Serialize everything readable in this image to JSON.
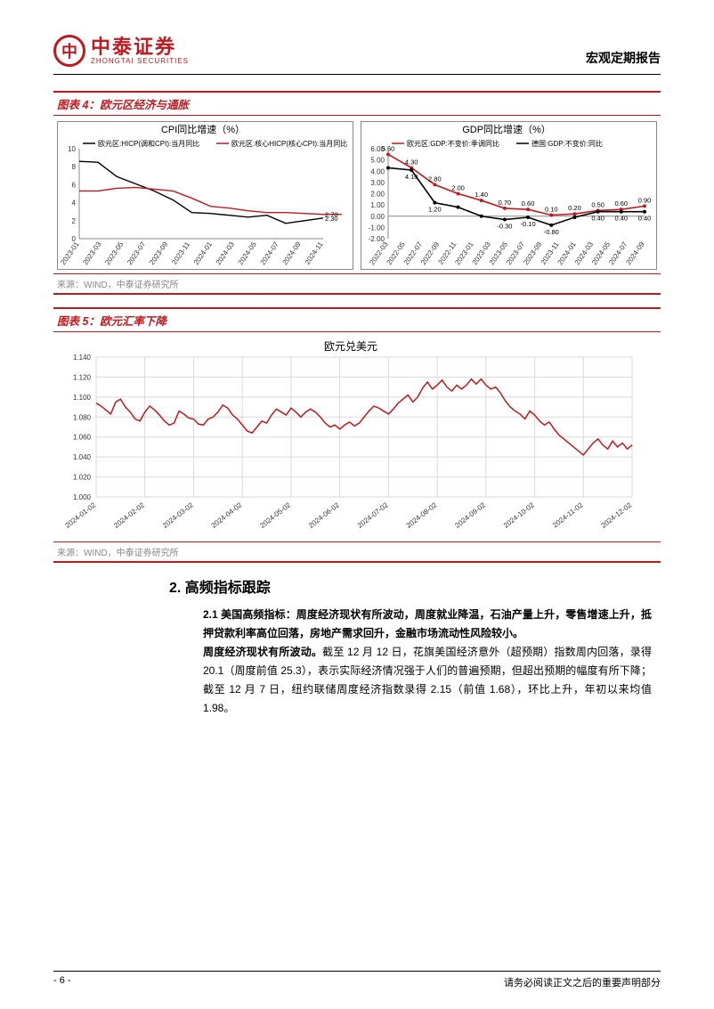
{
  "header": {
    "logo_cn": "中泰证券",
    "logo_en": "ZHONGTAI SECURITIES",
    "report_type": "宏观定期报告"
  },
  "chart4": {
    "title_idx": "图表 4：",
    "title_txt": "欧元区经济与通胀",
    "source": "来源：WIND，中泰证券研究所",
    "left": {
      "type": "line",
      "title": "CPI同比增速（%）",
      "legend": [
        {
          "label": "欧元区:HICP(调和CPI):当月同比",
          "color": "#000000"
        },
        {
          "label": "欧元区:核心HICP(核心CPI):当月同比",
          "color": "#c01920"
        }
      ],
      "x_categories": [
        "2023-01",
        "2023-03",
        "2023-05",
        "2023-07",
        "2023-09",
        "2023-11",
        "2024-01",
        "2024-03",
        "2024-05",
        "2024-07",
        "2024-09",
        "2024-11"
      ],
      "ylim": [
        0,
        10
      ],
      "ytick_step": 2,
      "series": [
        {
          "color": "#000000",
          "width": 1.4,
          "values": [
            8.6,
            8.5,
            6.9,
            6.1,
            5.3,
            4.3,
            2.9,
            2.8,
            2.6,
            2.4,
            2.6,
            1.7,
            2.0,
            2.3
          ]
        },
        {
          "color": "#c01920",
          "width": 1.4,
          "values": [
            5.3,
            5.3,
            5.6,
            5.7,
            5.5,
            5.3,
            4.5,
            3.6,
            3.4,
            3.1,
            2.9,
            2.9,
            2.8,
            2.7,
            2.7
          ]
        }
      ],
      "end_labels": [
        {
          "text": "2.70",
          "y": 2.7,
          "color": "#000"
        },
        {
          "text": "2.30",
          "y": 2.3,
          "color": "#000"
        }
      ],
      "background_color": "#ffffff",
      "grid_color": "#d0d0d0"
    },
    "right": {
      "type": "line",
      "title": "GDP同比增速（%）",
      "legend": [
        {
          "label": "欧元区:GDP:不变价:季调同比",
          "color": "#c01920"
        },
        {
          "label": "德国:GDP:不变价:同比",
          "color": "#000000"
        }
      ],
      "x_categories": [
        "2022-03",
        "2022-05",
        "2022-07",
        "2022-09",
        "2022-11",
        "2023-01",
        "2023-03",
        "2023-05",
        "2023-07",
        "2023-09",
        "2023-11",
        "2024-01",
        "2024-03",
        "2024-05",
        "2024-07",
        "2024-09"
      ],
      "ylim": [
        -2,
        6
      ],
      "ytick_step": 1,
      "series": [
        {
          "color": "#c01920",
          "width": 1.6,
          "labeled": true,
          "points": [
            {
              "x": 0,
              "y": 5.5,
              "label": "5.50"
            },
            {
              "x": 1,
              "y": 4.3,
              "label": "4.30"
            },
            {
              "x": 2,
              "y": 2.8,
              "label": "2.80"
            },
            {
              "x": 3,
              "y": 2.0,
              "label": "2.00"
            },
            {
              "x": 4,
              "y": 1.4,
              "label": "1.40"
            },
            {
              "x": 5,
              "y": 0.7,
              "label": "0.70"
            },
            {
              "x": 6,
              "y": 0.6,
              "label": "0.60"
            },
            {
              "x": 7,
              "y": 0.1,
              "label": "0.10"
            },
            {
              "x": 8,
              "y": 0.2,
              "label": "0.20"
            },
            {
              "x": 9,
              "y": 0.5,
              "label": "0.50"
            },
            {
              "x": 10,
              "y": 0.6,
              "label": "0.60"
            },
            {
              "x": 11,
              "y": 0.9,
              "label": "0.90"
            }
          ]
        },
        {
          "color": "#000000",
          "width": 1.6,
          "labeled": true,
          "points": [
            {
              "x": 0,
              "y": 4.3,
              "label": ""
            },
            {
              "x": 1,
              "y": 4.1,
              "label": "4.10"
            },
            {
              "x": 2,
              "y": 1.2,
              "label": "1.20"
            },
            {
              "x": 3,
              "y": 0.8,
              "label": ""
            },
            {
              "x": 4,
              "y": 0.0,
              "label": ""
            },
            {
              "x": 5,
              "y": -0.3,
              "label": "-0.30"
            },
            {
              "x": 6,
              "y": -0.1,
              "label": "-0.10"
            },
            {
              "x": 7,
              "y": -0.8,
              "label": "-0.80"
            },
            {
              "x": 8,
              "y": -0.1,
              "label": ""
            },
            {
              "x": 9,
              "y": 0.4,
              "label": "0.40"
            },
            {
              "x": 10,
              "y": 0.4,
              "label": "0.40"
            },
            {
              "x": 11,
              "y": 0.4,
              "label": "0.40"
            }
          ]
        }
      ],
      "background_color": "#ffffff",
      "grid_color": "#d0d0d0"
    }
  },
  "chart5": {
    "title_idx": "图表 5：",
    "title_txt": "欧元汇率下降",
    "source": "来源：WIND，中泰证券研究所",
    "panel": {
      "type": "line",
      "title": "欧元兑美元",
      "x_categories": [
        "2024-01-02",
        "2024-02-02",
        "2024-03-02",
        "2024-04-02",
        "2024-05-02",
        "2024-06-02",
        "2024-07-02",
        "2024-08-02",
        "2024-09-02",
        "2024-10-02",
        "2024-11-02",
        "2024-12-02"
      ],
      "ylim": [
        1.0,
        1.14
      ],
      "ytick_step": 0.02,
      "series_color": "#c01920",
      "series_width": 1.5,
      "values": [
        1.094,
        1.091,
        1.087,
        1.083,
        1.095,
        1.098,
        1.09,
        1.085,
        1.078,
        1.076,
        1.085,
        1.091,
        1.087,
        1.082,
        1.076,
        1.072,
        1.074,
        1.086,
        1.083,
        1.079,
        1.078,
        1.073,
        1.072,
        1.078,
        1.08,
        1.085,
        1.092,
        1.089,
        1.082,
        1.078,
        1.072,
        1.066,
        1.064,
        1.07,
        1.076,
        1.074,
        1.082,
        1.088,
        1.085,
        1.082,
        1.089,
        1.085,
        1.08,
        1.085,
        1.088,
        1.085,
        1.08,
        1.074,
        1.07,
        1.072,
        1.068,
        1.072,
        1.075,
        1.071,
        1.074,
        1.08,
        1.086,
        1.091,
        1.089,
        1.086,
        1.083,
        1.088,
        1.094,
        1.098,
        1.102,
        1.095,
        1.1,
        1.109,
        1.115,
        1.108,
        1.112,
        1.117,
        1.11,
        1.106,
        1.112,
        1.108,
        1.112,
        1.118,
        1.113,
        1.118,
        1.112,
        1.108,
        1.11,
        1.104,
        1.096,
        1.09,
        1.086,
        1.083,
        1.078,
        1.086,
        1.082,
        1.076,
        1.072,
        1.075,
        1.068,
        1.062,
        1.058,
        1.054,
        1.05,
        1.046,
        1.042,
        1.048,
        1.054,
        1.058,
        1.052,
        1.048,
        1.056,
        1.05,
        1.054,
        1.048,
        1.052
      ],
      "background_color": "#ffffff",
      "grid_color": "#d9d9d9"
    }
  },
  "section2": {
    "heading": "2. 高频指标跟踪",
    "para_lead": "2.1 美国高频指标：周度经济现状有所波动，周度就业降温，石油产量上升，零售增速上升，抵押贷款利率高位回落，房地产需求回升，金融市场流动性风险较小。",
    "para_bold2": "周度经济现状有所波动。",
    "para_rest": "截至 12 月 12 日，花旗美国经济意外（超预期）指数周内回落，录得 20.1（周度前值 25.3），表示实际经济情况强于人们的普遍预期，但超出预期的幅度有所下降；截至 12 月 7 日，纽约联储周度经济指数录得 2.15（前值 1.68），环比上升，年初以来均值 1.98。"
  },
  "footer": {
    "page": "- 6 -",
    "disclaimer": "请务必阅读正文之后的重要声明部分"
  }
}
